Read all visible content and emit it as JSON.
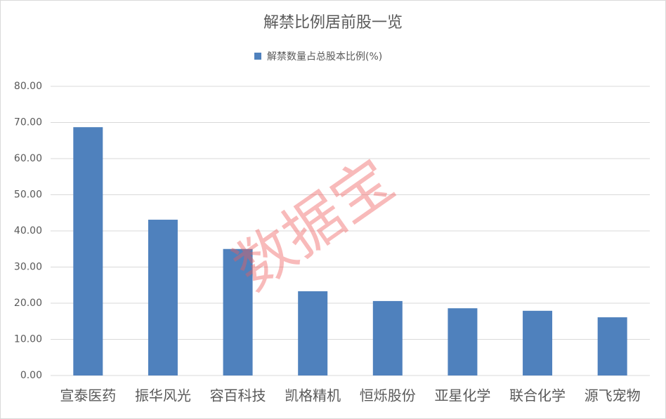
{
  "chart_data": {
    "type": "bar",
    "title": "解禁比例居前股一览",
    "categories": [
      "宣泰医药",
      "振华风光",
      "容百科技",
      "凯格精机",
      "恒烁股份",
      "亚星化学",
      "联合化学",
      "源飞宠物"
    ],
    "series": [
      {
        "name": "解禁数量占总股本比例(%)",
        "color": "#4f81bd",
        "values": [
          68.7,
          43.1,
          35.0,
          23.3,
          20.6,
          18.6,
          17.9,
          16.1
        ]
      }
    ],
    "ylim": [
      0,
      80
    ],
    "yticks": [
      {
        "value": 0,
        "label": "0.00"
      },
      {
        "value": 10,
        "label": "10.00"
      },
      {
        "value": 20,
        "label": "20.00"
      },
      {
        "value": 30,
        "label": "30.00"
      },
      {
        "value": 40,
        "label": "40.00"
      },
      {
        "value": 50,
        "label": "50.00"
      },
      {
        "value": 60,
        "label": "60.00"
      },
      {
        "value": 70,
        "label": "70.00"
      },
      {
        "value": 80,
        "label": "80.00"
      }
    ],
    "grid": true,
    "legend": "top",
    "watermark": "数据宝"
  }
}
